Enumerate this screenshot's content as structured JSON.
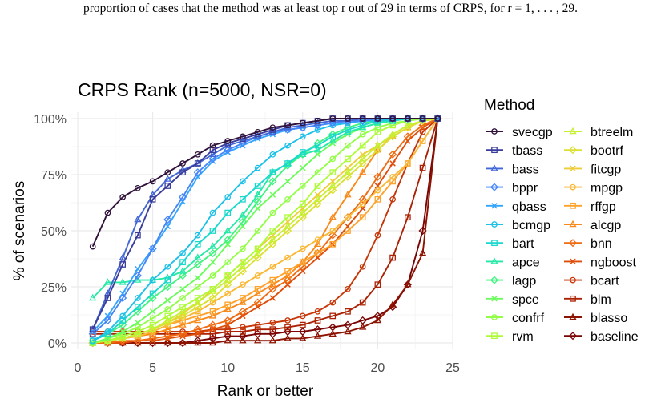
{
  "caption": "proportion of cases that the method was at least top r out of 29 in terms of CRPS, for r = 1, . . . , 29.",
  "chart_data": {
    "type": "line",
    "title": "CRPS Rank (n=5000, NSR=0)",
    "xlabel": "Rank or better",
    "ylabel": "% of scenarios",
    "xlim": [
      0,
      25
    ],
    "ylim": [
      0,
      100
    ],
    "xticks": [
      0,
      5,
      10,
      15,
      20,
      25
    ],
    "yticks": [
      0,
      25,
      50,
      75,
      100
    ],
    "ytick_labels": [
      "0%",
      "25%",
      "50%",
      "75%",
      "100%"
    ],
    "grid": true,
    "legend": {
      "title": "Method",
      "placement": "right",
      "columns": 2
    },
    "x": [
      1,
      2,
      3,
      4,
      5,
      6,
      7,
      8,
      9,
      10,
      11,
      12,
      13,
      14,
      15,
      16,
      17,
      18,
      19,
      20,
      21,
      22,
      23,
      24
    ],
    "series": [
      {
        "name": "svecgp",
        "color": "#30123b",
        "marker": "circle",
        "values": [
          43,
          58,
          65,
          69,
          72,
          76,
          80,
          84,
          88,
          90,
          92,
          94,
          96,
          97,
          98,
          99,
          100,
          100,
          100,
          100,
          100,
          100,
          100,
          100
        ]
      },
      {
        "name": "tbass",
        "color": "#3b3d9c",
        "marker": "square",
        "values": [
          6,
          20,
          35,
          48,
          64,
          70,
          76,
          80,
          86,
          89,
          91,
          93,
          95,
          97,
          98,
          99,
          100,
          100,
          100,
          100,
          100,
          100,
          100,
          100
        ]
      },
      {
        "name": "bass",
        "color": "#4267d6",
        "marker": "triangle",
        "values": [
          6,
          22,
          38,
          55,
          66,
          73,
          77,
          80,
          84,
          88,
          90,
          92,
          94,
          96,
          97,
          98,
          99,
          99,
          100,
          100,
          100,
          100,
          100,
          100
        ]
      },
      {
        "name": "bppr",
        "color": "#4686f8",
        "marker": "diamond",
        "values": [
          4,
          10,
          20,
          30,
          42,
          55,
          65,
          76,
          82,
          86,
          89,
          92,
          94,
          95,
          96,
          97,
          98,
          99,
          99,
          100,
          100,
          100,
          100,
          100
        ]
      },
      {
        "name": "qbass",
        "color": "#35a5fc",
        "marker": "x",
        "values": [
          5,
          12,
          22,
          33,
          42,
          52,
          63,
          74,
          81,
          85,
          88,
          91,
          93,
          95,
          96,
          97,
          98,
          98,
          99,
          100,
          100,
          100,
          100,
          100
        ]
      },
      {
        "name": "bcmgp",
        "color": "#1fc1e8",
        "marker": "circle",
        "values": [
          1,
          5,
          12,
          20,
          28,
          34,
          40,
          48,
          58,
          65,
          72,
          78,
          84,
          88,
          92,
          95,
          97,
          98,
          99,
          99,
          100,
          100,
          100,
          100
        ]
      },
      {
        "name": "bart",
        "color": "#19d8cd",
        "marker": "square",
        "values": [
          1,
          4,
          10,
          16,
          22,
          28,
          36,
          44,
          50,
          58,
          64,
          70,
          76,
          80,
          85,
          88,
          92,
          95,
          97,
          99,
          99,
          100,
          100,
          100
        ]
      },
      {
        "name": "apce",
        "color": "#26e9a6",
        "marker": "triangle",
        "values": [
          20,
          27,
          27,
          28,
          28,
          29,
          32,
          38,
          43,
          50,
          57,
          66,
          76,
          80,
          84,
          86,
          90,
          94,
          96,
          98,
          99,
          100,
          100,
          100
        ]
      },
      {
        "name": "lagp",
        "color": "#41f47f",
        "marker": "diamond",
        "values": [
          1,
          4,
          8,
          14,
          20,
          25,
          30,
          35,
          40,
          46,
          54,
          63,
          72,
          79,
          84,
          89,
          93,
          96,
          98,
          99,
          100,
          100,
          100,
          100
        ]
      },
      {
        "name": "spce",
        "color": "#6cfb5c",
        "marker": "x",
        "values": [
          0,
          2,
          5,
          9,
          14,
          19,
          24,
          29,
          36,
          44,
          52,
          60,
          66,
          72,
          78,
          84,
          89,
          93,
          96,
          98,
          99,
          100,
          100,
          100
        ]
      },
      {
        "name": "confrf",
        "color": "#93fe48",
        "marker": "circle",
        "values": [
          0,
          2,
          4,
          7,
          11,
          15,
          20,
          25,
          30,
          36,
          42,
          50,
          58,
          64,
          70,
          76,
          82,
          88,
          93,
          96,
          98,
          99,
          100,
          100
        ]
      },
      {
        "name": "rvm",
        "color": "#aefb3a",
        "marker": "square",
        "values": [
          0,
          1,
          3,
          5,
          8,
          12,
          16,
          20,
          24,
          30,
          36,
          42,
          50,
          56,
          62,
          70,
          76,
          82,
          88,
          94,
          97,
          99,
          100,
          100
        ]
      },
      {
        "name": "btreelm",
        "color": "#c6f032",
        "marker": "triangle",
        "values": [
          0,
          1,
          2,
          4,
          6,
          10,
          14,
          18,
          23,
          28,
          34,
          40,
          46,
          52,
          58,
          64,
          70,
          76,
          82,
          88,
          93,
          97,
          99,
          100
        ]
      },
      {
        "name": "bootrf",
        "color": "#dce032",
        "marker": "diamond",
        "values": [
          0,
          1,
          2,
          4,
          6,
          9,
          12,
          16,
          20,
          26,
          32,
          38,
          44,
          50,
          56,
          62,
          68,
          74,
          80,
          86,
          92,
          96,
          99,
          100
        ]
      },
      {
        "name": "fitcgp",
        "color": "#eecd38",
        "marker": "x",
        "values": [
          0,
          1,
          2,
          4,
          6,
          9,
          13,
          18,
          24,
          30,
          36,
          42,
          48,
          54,
          60,
          66,
          72,
          78,
          84,
          88,
          92,
          96,
          99,
          100
        ]
      },
      {
        "name": "mpgp",
        "color": "#f9b836",
        "marker": "circle",
        "values": [
          0,
          1,
          2,
          3,
          5,
          8,
          11,
          14,
          18,
          22,
          26,
          30,
          34,
          38,
          42,
          46,
          50,
          56,
          62,
          68,
          74,
          80,
          90,
          100
        ]
      },
      {
        "name": "rffgp",
        "color": "#fda22a",
        "marker": "square",
        "values": [
          0,
          1,
          2,
          3,
          5,
          8,
          10,
          12,
          14,
          17,
          20,
          24,
          28,
          32,
          36,
          40,
          44,
          50,
          56,
          64,
          72,
          80,
          90,
          100
        ]
      },
      {
        "name": "alcgp",
        "color": "#f88a1c",
        "marker": "triangle",
        "values": [
          0,
          1,
          2,
          3,
          4,
          6,
          8,
          10,
          12,
          15,
          18,
          22,
          26,
          30,
          36,
          44,
          56,
          66,
          76,
          86,
          92,
          96,
          99,
          100
        ]
      },
      {
        "name": "bnn",
        "color": "#ef6c14",
        "marker": "diamond",
        "values": [
          0,
          0,
          1,
          1,
          2,
          3,
          4,
          6,
          8,
          10,
          14,
          18,
          24,
          28,
          34,
          40,
          48,
          56,
          64,
          74,
          84,
          92,
          97,
          100
        ]
      },
      {
        "name": "ngboost",
        "color": "#de4d0a",
        "marker": "x",
        "values": [
          0,
          0,
          0,
          1,
          1,
          2,
          3,
          4,
          6,
          8,
          12,
          16,
          20,
          26,
          32,
          38,
          44,
          52,
          60,
          70,
          80,
          90,
          96,
          100
        ]
      },
      {
        "name": "bcart",
        "color": "#c73606",
        "marker": "circle",
        "values": [
          5,
          5,
          5,
          5,
          5,
          5,
          5,
          5,
          6,
          6,
          7,
          8,
          9,
          10,
          12,
          14,
          18,
          24,
          34,
          48,
          64,
          80,
          94,
          100
        ]
      },
      {
        "name": "blm",
        "color": "#ab2103",
        "marker": "square",
        "values": [
          4,
          4,
          4,
          4,
          4,
          4,
          4,
          4,
          4,
          5,
          5,
          6,
          6,
          7,
          8,
          10,
          12,
          14,
          18,
          26,
          38,
          56,
          78,
          100
        ]
      },
      {
        "name": "blasso",
        "color": "#8c1201",
        "marker": "triangle",
        "values": [
          0,
          0,
          0,
          0,
          0,
          0,
          0,
          0,
          0,
          1,
          1,
          1,
          1,
          2,
          2,
          3,
          4,
          5,
          7,
          10,
          17,
          26,
          40,
          100
        ]
      },
      {
        "name": "baseline",
        "color": "#7a0403",
        "marker": "diamond",
        "values": [
          0,
          0,
          0,
          0,
          0,
          0,
          0,
          1,
          2,
          3,
          3,
          4,
          4,
          5,
          5,
          6,
          7,
          8,
          10,
          12,
          16,
          26,
          50,
          100
        ]
      }
    ]
  }
}
